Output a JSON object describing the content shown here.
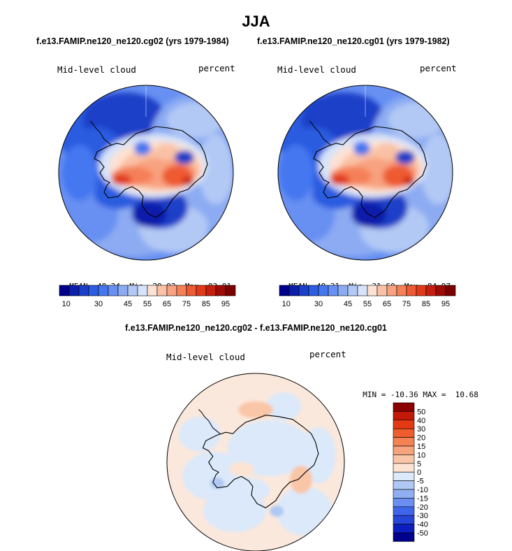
{
  "title": "JJA",
  "colors": {
    "blue_scale": [
      "#00008c",
      "#0a1faa",
      "#1a3fc8",
      "#2c5ce0",
      "#4477f0",
      "#6790f2",
      "#8cabf2",
      "#b2c9f5",
      "#d6e3fa"
    ],
    "red_scale": [
      "#fde2d3",
      "#f9c2a6",
      "#f8a27f",
      "#f58058",
      "#ee5a33",
      "#e03a1a",
      "#c41e0e",
      "#9e0a04",
      "#7a0000"
    ],
    "diff_blue": [
      "#dbe9fa",
      "#b0c8f4",
      "#8faff2",
      "#6a8ff0",
      "#3f66ea",
      "#2646d8",
      "#0d1ec0",
      "#00008c"
    ],
    "diff_red": [
      "#fde3d2",
      "#f9c6a8",
      "#f6a47e",
      "#f48255",
      "#ef5c2e",
      "#e43a14",
      "#c21a06",
      "#8c0000"
    ]
  },
  "chart_data": [
    {
      "type": "heatmap",
      "projection": "south-polar-stereographic",
      "title": "f.e13.FAMIP.ne120_ne120.cg02 (yrs 1979-1984)",
      "left_label": "Mid-level cloud",
      "right_label": "percent",
      "stats": {
        "mean_label": "MEAN=",
        "mean": "48.24",
        "min_label": "Min=",
        "min": "29.92",
        "max_label": "Max=",
        "max": "83.91"
      },
      "colorbar": {
        "orientation": "horizontal",
        "levels": [
          10,
          15,
          20,
          25,
          30,
          35,
          40,
          45,
          50,
          55,
          60,
          65,
          70,
          75,
          80,
          85,
          90,
          95
        ],
        "tick_labels": [
          "10",
          "30",
          "45",
          "55",
          "65",
          "75",
          "85",
          "95"
        ]
      }
    },
    {
      "type": "heatmap",
      "projection": "south-polar-stereographic",
      "title": "f.e13.FAMIP.ne120_ne120.cg01 (yrs 1979-1982)",
      "left_label": "Mid-level cloud",
      "right_label": "percent",
      "stats": {
        "mean_label": "MEAN=",
        "mean": "48.31",
        "min_label": "Min=",
        "min": "31.60",
        "max_label": "Max=",
        "max": "84.97"
      },
      "colorbar": {
        "orientation": "horizontal",
        "levels": [
          10,
          15,
          20,
          25,
          30,
          35,
          40,
          45,
          50,
          55,
          60,
          65,
          70,
          75,
          80,
          85,
          90,
          95
        ],
        "tick_labels": [
          "10",
          "30",
          "45",
          "55",
          "65",
          "75",
          "85",
          "95"
        ]
      }
    },
    {
      "type": "heatmap",
      "projection": "south-polar-stereographic",
      "title": "f.e13.FAMIP.ne120_ne120.cg02 - f.e13.FAMIP.ne120_ne120.cg01",
      "left_label": "Mid-level cloud",
      "right_label": "percent",
      "stats": {
        "min_label": "MIN =",
        "min": "-10.36",
        "max_label": "MAX =",
        "max": "10.68"
      },
      "colorbar": {
        "orientation": "vertical",
        "tick_labels": [
          "50",
          "40",
          "30",
          "20",
          "15",
          "10",
          "5",
          "0",
          "-5",
          "-10",
          "-15",
          "-20",
          "-30",
          "-40",
          "-50"
        ]
      }
    }
  ]
}
